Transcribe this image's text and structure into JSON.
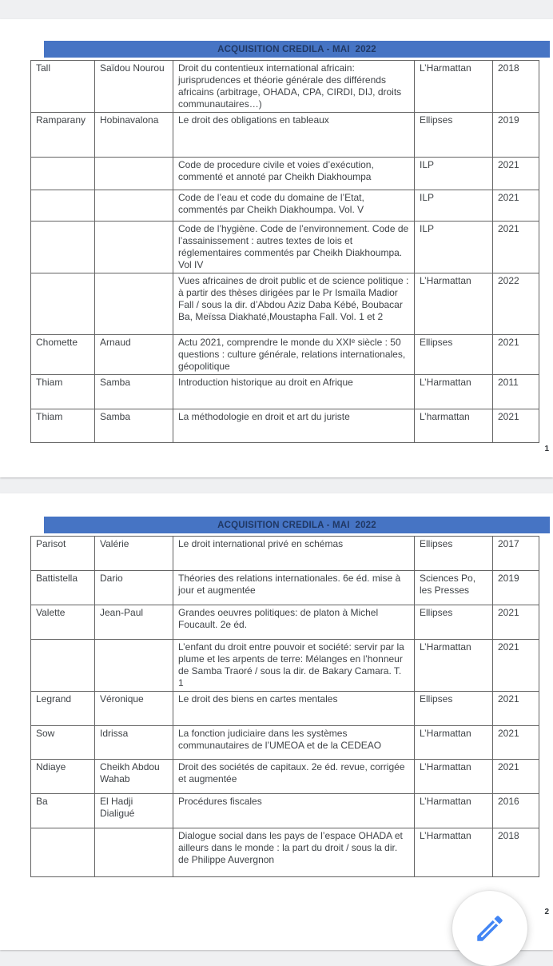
{
  "document": {
    "banner_bg_color": "#4674c4",
    "banner_text_color": "#203864",
    "table_columns": [
      "last_name",
      "first_name",
      "title",
      "publisher",
      "year"
    ]
  },
  "fab": {
    "icon": "pencil-edit-icon",
    "color": "#4285f4"
  },
  "pages": [
    {
      "banner": "ACQUISITION CREDILA - MAI  2022",
      "page_number": "1",
      "rows": [
        {
          "last_name": "Tall",
          "first_name": "Saïdou Nourou",
          "title": "Droit du contentieux international africain: jurisprudences et théorie générale des différends africains (arbitrage, OHADA, CPA, CIRDI, DIJ, droits communautaires…)",
          "publisher": "L’Harmattan",
          "year": "2018"
        },
        {
          "last_name": "Ramparany",
          "first_name": "Hobinavalona",
          "title": "Le droit des obligations en tableaux",
          "publisher": "Ellipses",
          "year": "2019"
        },
        {
          "last_name": "",
          "first_name": "",
          "title": "Code de procedure civile et voies d’exécution, commenté et annoté par Cheikh Diakhoumpa",
          "publisher": "ILP",
          "year": "2021"
        },
        {
          "last_name": "",
          "first_name": "",
          "title": "Code de l’eau et code du domaine de l’Etat, commentés par Cheikh Diakhoumpa. Vol. V",
          "publisher": "ILP",
          "year": "2021"
        },
        {
          "last_name": "",
          "first_name": "",
          "title": "Code de l’hygiène. Code de l’environnement. Code de l’assainissement : autres textes de lois et réglementaires commentés par Cheikh Diakhoumpa. Vol IV",
          "publisher": "ILP",
          "year": "2021"
        },
        {
          "last_name": "",
          "first_name": "",
          "title": "Vues africaines de droit public et de science politique : à partir des thèses dirigées par le Pr Ismaïla Madior Fall / sous la dir. d’Abdou Aziz Daba Kébé, Boubacar Ba, Meïssa Diakhaté,Moustapha Fall. Vol. 1 et 2",
          "publisher": "L’Harmattan",
          "year": "2022"
        },
        {
          "last_name": "Chomette",
          "first_name": "Arnaud",
          "title": "Actu 2021, comprendre le monde du XXIᵉ siècle : 50 questions : culture générale, relations internationales, géopolitique",
          "publisher": "Ellipses",
          "year": "2021"
        },
        {
          "last_name": "Thiam",
          "first_name": "Samba",
          "title": "Introduction historique au droit en Afrique",
          "publisher": "L’Harmattan",
          "year": "2011"
        },
        {
          "last_name": "Thiam",
          "first_name": "Samba",
          "title": "La méthodologie en droit et art du juriste",
          "publisher": "L’harmattan",
          "year": "2021"
        }
      ]
    },
    {
      "banner": "ACQUISITION CREDILA - MAI  2022",
      "page_number": "2",
      "rows": [
        {
          "last_name": "Parisot",
          "first_name": "Valérie",
          "title": "Le droit international privé en schémas",
          "publisher": "Ellipses",
          "year": "2017"
        },
        {
          "last_name": "Battistella",
          "first_name": "Dario",
          "title": "Théories des relations internationales. 6e éd. mise à jour et augmentée",
          "publisher": "Sciences Po, les Presses",
          "year": "2019"
        },
        {
          "last_name": "Valette",
          "first_name": "Jean-Paul",
          "title": "Grandes oeuvres politiques: de platon à Michel Foucault. 2e éd.",
          "publisher": "Ellipses",
          "year": "2021"
        },
        {
          "last_name": "",
          "first_name": "",
          "title": "L’enfant du droit entre pouvoir et société: servir par la plume et les arpents de terre: Mélanges en l’honneur de Samba Traoré / sous la dir. de Bakary Camara. T. 1",
          "publisher": "L’Harmattan",
          "year": "2021"
        },
        {
          "last_name": "Legrand",
          "first_name": "Véronique",
          "title": "Le droit des biens en cartes mentales",
          "publisher": "Ellipses",
          "year": "2021"
        },
        {
          "last_name": "Sow",
          "first_name": "Idrissa",
          "title": "La fonction judiciaire dans les systèmes communautaires de l’UMEOA et de la CEDEAO",
          "publisher": "L’Harmattan",
          "year": "2021"
        },
        {
          "last_name": "Ndiaye",
          "first_name": "Cheikh Abdou Wahab",
          "title": "Droit des sociétés de capitaux. 2e éd. revue, corrigée et augmentée",
          "publisher": "L’Harmattan",
          "year": "2021"
        },
        {
          "last_name": "Ba",
          "first_name": "El Hadji Dialigué",
          "title": "Procédures fiscales",
          "publisher": "L’Harmattan",
          "year": "2016"
        },
        {
          "last_name": "",
          "first_name": "",
          "title": "Dialogue social dans les pays de l’espace OHADA et ailleurs dans le monde : la part du droit / sous la dir. de Philippe Auvergnon",
          "publisher": "L’Harmattan",
          "year": "2018"
        }
      ]
    }
  ]
}
